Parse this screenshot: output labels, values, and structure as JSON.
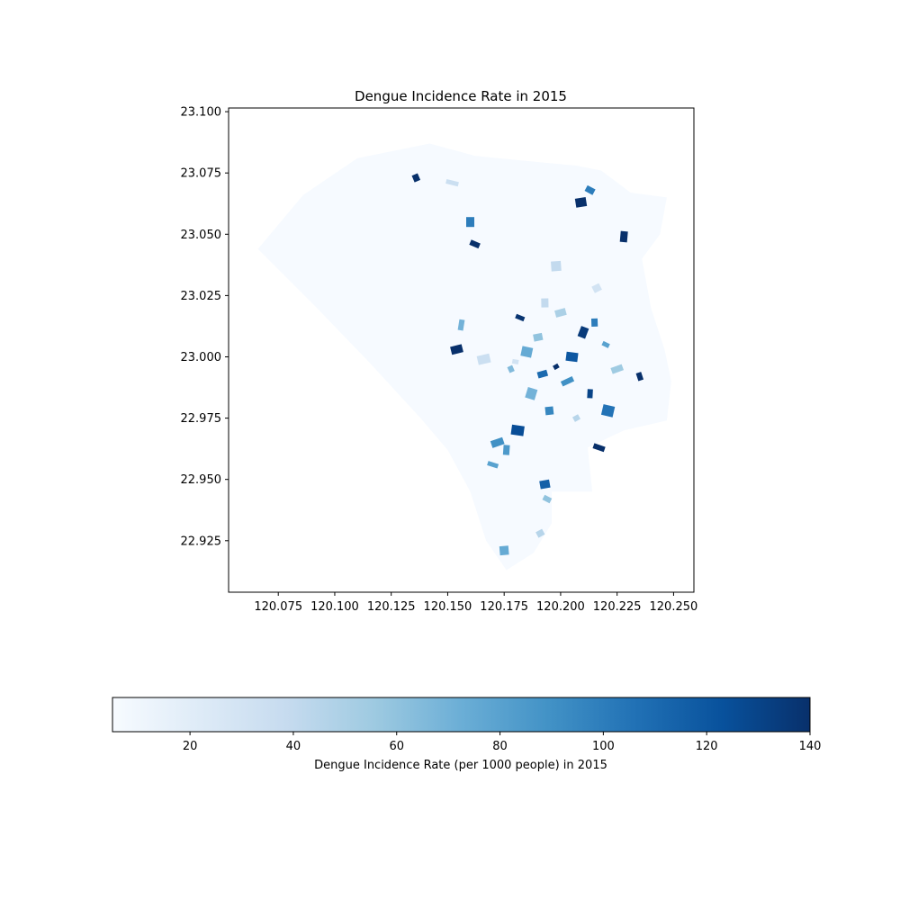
{
  "chart_data": {
    "type": "choropleth",
    "title": "Dengue Incidence Rate in 2015",
    "xlabel": "",
    "ylabel": "",
    "xlim": [
      120.053,
      120.259
    ],
    "ylim": [
      22.904,
      23.1015
    ],
    "x_ticks": [
      "120.075",
      "120.100",
      "120.125",
      "120.150",
      "120.175",
      "120.200",
      "120.225",
      "120.250"
    ],
    "x_tick_values": [
      120.075,
      120.1,
      120.125,
      120.15,
      120.175,
      120.2,
      120.225,
      120.25
    ],
    "y_ticks": [
      "22.925",
      "22.950",
      "22.975",
      "23.000",
      "23.025",
      "23.050",
      "23.075",
      "23.100"
    ],
    "y_tick_values": [
      22.925,
      22.95,
      22.975,
      23.0,
      23.025,
      23.05,
      23.075,
      23.1
    ],
    "colormap": "Blues",
    "colormap_stops": [
      "#f7fbff",
      "#deebf7",
      "#c6dbef",
      "#9ecae1",
      "#6baed6",
      "#4292c6",
      "#2171b5",
      "#08519c",
      "#08306b"
    ],
    "colorbar": {
      "label": "Dengue Incidence Rate (per 1000 people) in 2015",
      "range": [
        5,
        140
      ],
      "ticks": [
        "20",
        "40",
        "60",
        "80",
        "100",
        "120",
        "140"
      ],
      "tick_values": [
        20,
        40,
        60,
        80,
        100,
        120,
        140
      ],
      "orientation": "horizontal"
    },
    "grid": false,
    "background_value": 6,
    "boundary": [
      [
        120.066,
        23.044
      ],
      [
        120.086,
        23.066
      ],
      [
        120.11,
        23.081
      ],
      [
        120.142,
        23.087
      ],
      [
        120.162,
        23.082
      ],
      [
        120.184,
        23.08
      ],
      [
        120.207,
        23.078
      ],
      [
        120.218,
        23.076
      ],
      [
        120.231,
        23.067
      ],
      [
        120.247,
        23.065
      ],
      [
        120.244,
        23.05
      ],
      [
        120.236,
        23.04
      ],
      [
        120.24,
        23.02
      ],
      [
        120.246,
        23.003
      ],
      [
        120.249,
        22.99
      ],
      [
        120.247,
        22.974
      ],
      [
        120.228,
        22.97
      ],
      [
        120.212,
        22.963
      ],
      [
        120.214,
        22.945
      ],
      [
        120.196,
        22.945
      ],
      [
        120.196,
        22.932
      ],
      [
        120.188,
        22.92
      ],
      [
        120.176,
        22.913
      ],
      [
        120.167,
        22.925
      ],
      [
        120.16,
        22.945
      ],
      [
        120.15,
        22.962
      ],
      [
        120.138,
        22.975
      ],
      [
        120.115,
        22.998
      ],
      [
        120.092,
        23.02
      ],
      [
        120.066,
        23.044
      ]
    ],
    "regions": [
      {
        "lon": 120.198,
        "lat": 22.996,
        "value": 140
      },
      {
        "lon": 120.205,
        "lat": 23.0,
        "value": 120
      },
      {
        "lon": 120.192,
        "lat": 22.993,
        "value": 110
      },
      {
        "lon": 120.21,
        "lat": 23.01,
        "value": 135
      },
      {
        "lon": 120.215,
        "lat": 23.014,
        "value": 100
      },
      {
        "lon": 120.203,
        "lat": 22.99,
        "value": 90
      },
      {
        "lon": 120.185,
        "lat": 23.002,
        "value": 75
      },
      {
        "lon": 120.19,
        "lat": 23.008,
        "value": 60
      },
      {
        "lon": 120.22,
        "lat": 23.005,
        "value": 80
      },
      {
        "lon": 120.213,
        "lat": 22.985,
        "value": 130
      },
      {
        "lon": 120.225,
        "lat": 22.995,
        "value": 55
      },
      {
        "lon": 120.187,
        "lat": 22.985,
        "value": 70
      },
      {
        "lon": 120.195,
        "lat": 22.978,
        "value": 95
      },
      {
        "lon": 120.207,
        "lat": 22.975,
        "value": 45
      },
      {
        "lon": 120.181,
        "lat": 22.97,
        "value": 125
      },
      {
        "lon": 120.2,
        "lat": 23.018,
        "value": 50
      },
      {
        "lon": 120.182,
        "lat": 23.016,
        "value": 138
      },
      {
        "lon": 120.193,
        "lat": 23.022,
        "value": 40
      },
      {
        "lon": 120.178,
        "lat": 22.995,
        "value": 65
      },
      {
        "lon": 120.221,
        "lat": 22.978,
        "value": 105
      },
      {
        "lon": 120.193,
        "lat": 22.948,
        "value": 115
      },
      {
        "lon": 120.194,
        "lat": 22.942,
        "value": 60
      },
      {
        "lon": 120.176,
        "lat": 22.962,
        "value": 85
      },
      {
        "lon": 120.172,
        "lat": 22.965,
        "value": 90
      },
      {
        "lon": 120.17,
        "lat": 22.956,
        "value": 80
      },
      {
        "lon": 120.175,
        "lat": 22.921,
        "value": 75
      },
      {
        "lon": 120.191,
        "lat": 22.928,
        "value": 45
      },
      {
        "lon": 120.156,
        "lat": 23.013,
        "value": 70
      },
      {
        "lon": 120.154,
        "lat": 23.003,
        "value": 140
      },
      {
        "lon": 120.162,
        "lat": 23.046,
        "value": 140
      },
      {
        "lon": 120.16,
        "lat": 23.055,
        "value": 100
      },
      {
        "lon": 120.136,
        "lat": 23.073,
        "value": 140
      },
      {
        "lon": 120.152,
        "lat": 23.071,
        "value": 35
      },
      {
        "lon": 120.209,
        "lat": 23.063,
        "value": 140
      },
      {
        "lon": 120.213,
        "lat": 23.068,
        "value": 100
      },
      {
        "lon": 120.228,
        "lat": 23.049,
        "value": 140
      },
      {
        "lon": 120.235,
        "lat": 22.992,
        "value": 140
      },
      {
        "lon": 120.217,
        "lat": 22.963,
        "value": 140
      },
      {
        "lon": 120.198,
        "lat": 23.037,
        "value": 40
      },
      {
        "lon": 120.216,
        "lat": 23.028,
        "value": 30
      },
      {
        "lon": 120.18,
        "lat": 22.998,
        "value": 30
      },
      {
        "lon": 120.166,
        "lat": 22.999,
        "value": 35
      }
    ]
  }
}
